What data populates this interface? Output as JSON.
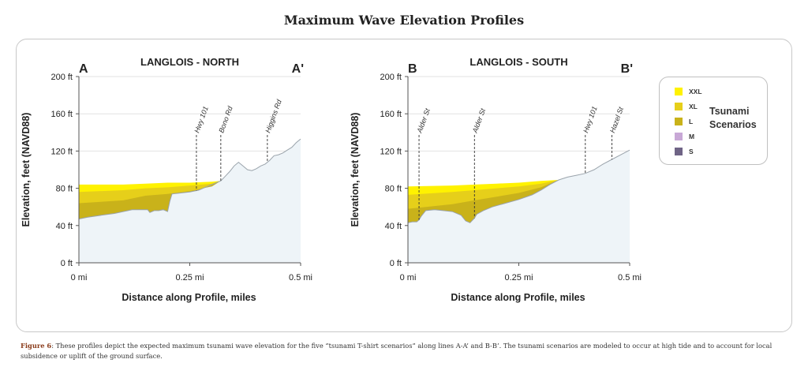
{
  "figure": {
    "title": "Maximum Wave Elevation Profiles",
    "caption_label": "Figure 6",
    "caption_text": ": These profiles depict the expected maximum tsunami wave elevation for the five “tsunami T-shirt scenarios” along lines A-A’ and B-B’. The tsunami scenarios are modeled to occur at high tide and to account for local subsidence or uplift of the ground surface."
  },
  "legend": {
    "title_line1": "Tsunami",
    "title_line2": "Scenarios",
    "items": [
      {
        "label": "XXL",
        "color": "#fff200"
      },
      {
        "label": "XL",
        "color": "#e6cf1a"
      },
      {
        "label": "L",
        "color": "#c9b21a"
      },
      {
        "label": "M",
        "color": "#c8a8d6"
      },
      {
        "label": "S",
        "color": "#6f6486"
      }
    ]
  },
  "colors": {
    "ground": "#eef4f8",
    "ground_line": "#9aa3ab",
    "XXL": "#fff200",
    "XL": "#e6cf1a",
    "L": "#c9b21a"
  },
  "chart_data": [
    {
      "type": "area",
      "title": "LANGLOIS - NORTH",
      "start_label": "A",
      "end_label": "A'",
      "xlabel": "Distance along Profile, miles",
      "ylabel": "Elevation, feet (NAVD88)",
      "xlim": [
        0,
        0.5
      ],
      "ylim": [
        0,
        200
      ],
      "xticks": [
        {
          "v": 0,
          "label": "0 mi"
        },
        {
          "v": 0.25,
          "label": "0.25 mi"
        },
        {
          "v": 0.5,
          "label": "0.5 mi"
        }
      ],
      "yticks": [
        {
          "v": 0,
          "label": "0 ft"
        },
        {
          "v": 40,
          "label": "40 ft"
        },
        {
          "v": 80,
          "label": "80 ft"
        },
        {
          "v": 120,
          "label": "120 ft"
        },
        {
          "v": 160,
          "label": "160 ft"
        },
        {
          "v": 200,
          "label": "200 ft"
        }
      ],
      "ground": {
        "x": [
          0,
          0.02,
          0.05,
          0.08,
          0.1,
          0.12,
          0.14,
          0.155,
          0.16,
          0.17,
          0.18,
          0.19,
          0.2,
          0.205,
          0.21,
          0.23,
          0.25,
          0.26,
          0.27,
          0.28,
          0.29,
          0.3,
          0.31,
          0.32,
          0.33,
          0.34,
          0.35,
          0.36,
          0.37,
          0.38,
          0.39,
          0.4,
          0.41,
          0.42,
          0.43,
          0.44,
          0.45,
          0.46,
          0.47,
          0.48,
          0.49,
          0.5
        ],
        "y": [
          47,
          49,
          51,
          53,
          55,
          57,
          57,
          57,
          54,
          56,
          56,
          57,
          55,
          66,
          74,
          75,
          76,
          77,
          78,
          80,
          82,
          84,
          86,
          88,
          93,
          98,
          104,
          108,
          104,
          100,
          99,
          101,
          104,
          106,
          110,
          115,
          116,
          118,
          121,
          124,
          129,
          133
        ]
      },
      "series": [
        {
          "name": "XXL",
          "x": [
            0,
            0.1,
            0.15,
            0.2,
            0.25,
            0.3,
            0.32
          ],
          "y": [
            84,
            84,
            85,
            86,
            86,
            87,
            88
          ]
        },
        {
          "name": "XL",
          "x": [
            0,
            0.1,
            0.15,
            0.2,
            0.25,
            0.3,
            0.32
          ],
          "y": [
            76,
            78,
            80,
            81,
            83,
            85,
            88
          ]
        },
        {
          "name": "L",
          "x": [
            0,
            0.1,
            0.15,
            0.2,
            0.25,
            0.3,
            0.32
          ],
          "y": [
            64,
            67,
            72,
            74,
            77,
            82,
            88
          ]
        }
      ],
      "annotations": [
        {
          "label": "Hwy 101",
          "x": 0.265
        },
        {
          "label": "Bono Rd",
          "x": 0.32
        },
        {
          "label": "Higgins Rd",
          "x": 0.425
        }
      ]
    },
    {
      "type": "area",
      "title": "LANGLOIS - SOUTH",
      "start_label": "B",
      "end_label": "B'",
      "xlabel": "Distance along Profile, miles",
      "ylabel": "Elevation, feet (NAVD88)",
      "xlim": [
        0,
        0.5
      ],
      "ylim": [
        0,
        200
      ],
      "xticks": [
        {
          "v": 0,
          "label": "0 mi"
        },
        {
          "v": 0.25,
          "label": "0.25 mi"
        },
        {
          "v": 0.5,
          "label": "0.5 mi"
        }
      ],
      "yticks": [
        {
          "v": 0,
          "label": "0 ft"
        },
        {
          "v": 40,
          "label": "40 ft"
        },
        {
          "v": 80,
          "label": "80 ft"
        },
        {
          "v": 120,
          "label": "120 ft"
        },
        {
          "v": 160,
          "label": "160 ft"
        },
        {
          "v": 200,
          "label": "200 ft"
        }
      ],
      "ground": {
        "x": [
          0,
          0.01,
          0.02,
          0.025,
          0.03,
          0.04,
          0.06,
          0.08,
          0.1,
          0.12,
          0.13,
          0.14,
          0.15,
          0.155,
          0.17,
          0.19,
          0.22,
          0.25,
          0.28,
          0.3,
          0.32,
          0.34,
          0.36,
          0.38,
          0.4,
          0.42,
          0.44,
          0.46,
          0.48,
          0.5
        ],
        "y": [
          43,
          44,
          44,
          46,
          50,
          56,
          57,
          56,
          55,
          51,
          45,
          43,
          48,
          52,
          56,
          60,
          64,
          68,
          73,
          78,
          84,
          89,
          92,
          94,
          96,
          100,
          106,
          111,
          116,
          121
        ]
      },
      "series": [
        {
          "name": "XXL",
          "x": [
            0,
            0.1,
            0.15,
            0.2,
            0.25,
            0.3,
            0.34
          ],
          "y": [
            82,
            83,
            84,
            85,
            86,
            88,
            89
          ]
        },
        {
          "name": "XL",
          "x": [
            0,
            0.1,
            0.15,
            0.2,
            0.25,
            0.3,
            0.34
          ],
          "y": [
            73,
            76,
            78,
            80,
            82,
            85,
            89
          ]
        },
        {
          "name": "L",
          "x": [
            0,
            0.1,
            0.15,
            0.2,
            0.25,
            0.3,
            0.34
          ],
          "y": [
            58,
            63,
            67,
            71,
            75,
            81,
            89
          ]
        }
      ],
      "annotations": [
        {
          "label": "Alder St",
          "x": 0.025
        },
        {
          "label": "Alder St",
          "x": 0.15
        },
        {
          "label": "Hwy 101",
          "x": 0.4
        },
        {
          "label": "Hazel St",
          "x": 0.46
        }
      ]
    }
  ]
}
